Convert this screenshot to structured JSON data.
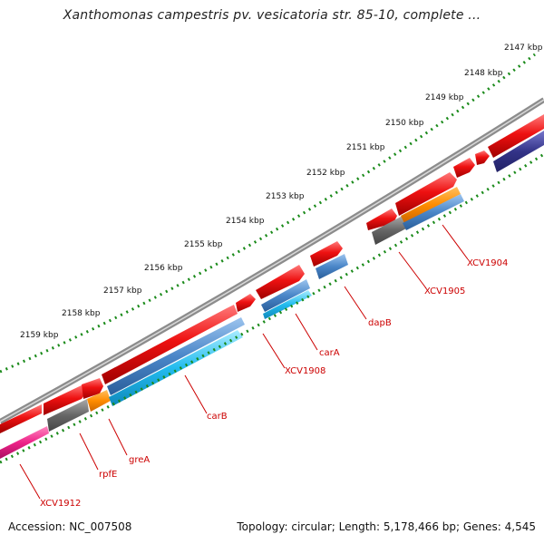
{
  "title": "Xanthomonas campestris pv. vesicatoria str. 85-10, complete ...",
  "ruler_ticks": [
    "2147 kbp",
    "2148 kbp",
    "2149 kbp",
    "2150 kbp",
    "2151 kbp",
    "2152 kbp",
    "2153 kbp",
    "2154 kbp",
    "2155 kbp",
    "2156 kbp",
    "2157 kbp",
    "2158 kbp",
    "2159 kbp"
  ],
  "gene_labels": [
    "XCV1904",
    "XCV1905",
    "dapB",
    "carA",
    "XCV1908",
    "carB",
    "greA",
    "rpfE",
    "XCV1912"
  ],
  "footer": {
    "accession": "Accession: NC_007508",
    "summary": "Topology: circular; Length: 5,178,466 bp; Genes: 4,545"
  },
  "colors": {
    "backbone": "#8c8c8c",
    "forward_strand": "#ee1111",
    "reverse_blue": "#4a86c8",
    "reverse_cyan": "#22bbee",
    "reverse_gray": "#666666",
    "orange": "#ff8c00",
    "magenta": "#ee2288",
    "navy": "#333388",
    "ruler_dots": "#1a8a1a",
    "label": "#cc0000"
  }
}
